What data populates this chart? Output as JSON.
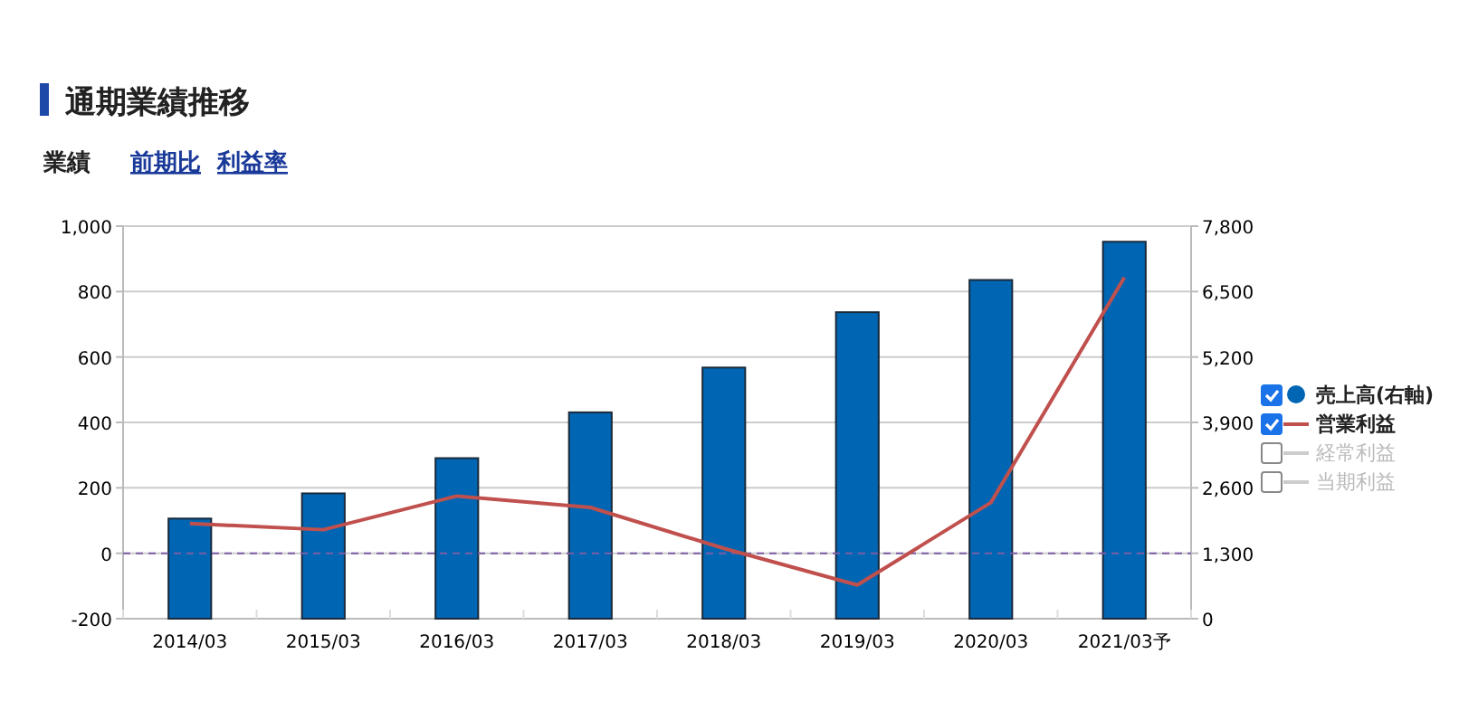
{
  "chart_data": {
    "type": "bar",
    "title": "通期業績推移",
    "annotations": [
      "業績",
      "前期比",
      "利益率"
    ],
    "categories": [
      "2014/03",
      "2015/03",
      "2016/03",
      "2017/03",
      "2018/03",
      "2019/03",
      "2020/03",
      "2021/03予"
    ],
    "series": [
      {
        "name": "売上高(右軸)",
        "axis": "y2",
        "color": "#0066b3",
        "values": [
          1990,
          2490,
          3190,
          4100,
          4990,
          6090,
          6730,
          7490
        ]
      },
      {
        "name": "営業利益",
        "type": "line",
        "color": "#c0504d",
        "values": [
          91,
          72,
          175,
          140,
          15,
          -97,
          155,
          843
        ]
      },
      {
        "name": "経常利益",
        "type": "line",
        "color": "#cccccc",
        "values": [
          null,
          null,
          null,
          null,
          null,
          null,
          null,
          null
        ]
      },
      {
        "name": "当期利益",
        "type": "line",
        "color": "#cccccc",
        "values": [
          null,
          null,
          null,
          null,
          null,
          null,
          null,
          null
        ]
      }
    ],
    "ylim": [
      -200,
      1000
    ],
    "yticks": [
      -200,
      0,
      200,
      400,
      600,
      800,
      {
        "value": 1000,
        "label": "1,000"
      }
    ],
    "y2lim": [
      0,
      7800
    ],
    "y2ticks": [
      0,
      {
        "value": 1300,
        "label": "1,300"
      },
      {
        "value": 2600,
        "label": "2,600"
      },
      {
        "value": 3900,
        "label": "3,900"
      },
      {
        "value": 5200,
        "label": "5,200"
      },
      {
        "value": 6500,
        "label": "6,500"
      },
      {
        "value": 7800,
        "label": "7,800"
      }
    ],
    "ref_lines": [
      {
        "axis": "y",
        "value": 0,
        "color": "#7b5ea7",
        "line_style": "dashed"
      }
    ],
    "grid": "y",
    "legend": "right",
    "line_style": "solid",
    "marker": "none"
  }
}
